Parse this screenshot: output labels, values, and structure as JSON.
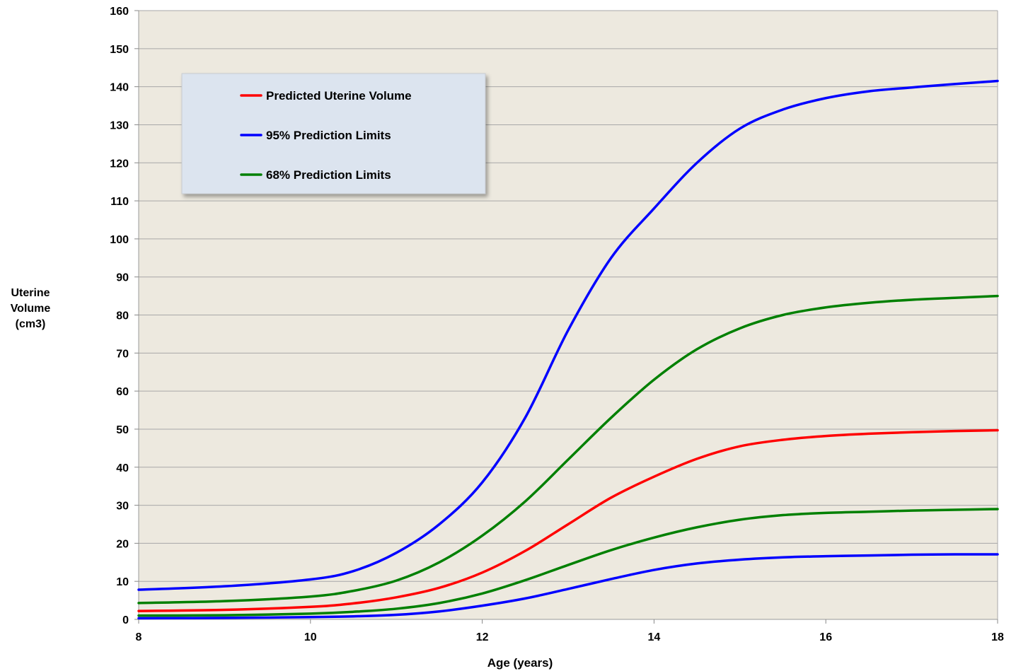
{
  "chart_data": {
    "type": "line",
    "xlabel": "Age (years)",
    "ylabel": "Uterine\nVolume\n(cm3)",
    "xlim": [
      8,
      18
    ],
    "ylim": [
      0,
      160
    ],
    "xticks": [
      8,
      10,
      12,
      14,
      16,
      18
    ],
    "yticks": [
      0,
      10,
      20,
      30,
      40,
      50,
      60,
      70,
      80,
      90,
      100,
      110,
      120,
      130,
      140,
      150,
      160
    ],
    "grid": true,
    "legend_position": "top-left",
    "plot_background": "#ede9df",
    "x": [
      8,
      9,
      10,
      10.5,
      11,
      11.5,
      12,
      12.5,
      13,
      13.5,
      14,
      14.5,
      15,
      15.5,
      16,
      16.5,
      17,
      17.5,
      18
    ],
    "series": [
      {
        "name": "Predicted Uterine Volume",
        "color": "#ff0000",
        "legend": true,
        "values": [
          2.2,
          2.5,
          3.3,
          4.2,
          5.8,
          8.3,
          12.3,
          18,
          25,
          32,
          37.5,
          42.2,
          45.5,
          47.2,
          48.2,
          48.8,
          49.2,
          49.5,
          49.7
        ]
      },
      {
        "name": "95% Prediction Limits",
        "color": "#0000ff",
        "legend": true,
        "values": [
          7.8,
          8.7,
          10.5,
          12.7,
          17.5,
          25,
          36,
          53,
          76,
          95,
          108,
          120,
          129,
          134,
          137,
          138.8,
          139.8,
          140.7,
          141.5
        ]
      },
      {
        "name": "68% Prediction Limits",
        "color": "#008000",
        "legend": true,
        "values": [
          4.3,
          4.8,
          6,
          7.5,
          10.2,
          15,
          22,
          31,
          42,
          53,
          63,
          71,
          76.5,
          80,
          82,
          83.2,
          84,
          84.5,
          85
        ]
      },
      {
        "name": "95% Prediction Limits (lower)",
        "color": "#0000ff",
        "legend": false,
        "values": [
          0.3,
          0.4,
          0.6,
          0.8,
          1.2,
          2.1,
          3.6,
          5.5,
          8,
          10.6,
          13,
          14.7,
          15.7,
          16.3,
          16.6,
          16.8,
          17,
          17.1,
          17.1
        ]
      },
      {
        "name": "68% Prediction Limits (lower)",
        "color": "#008000",
        "legend": false,
        "values": [
          1,
          1.1,
          1.5,
          2,
          2.8,
          4.3,
          6.8,
          10.3,
          14.3,
          18.2,
          21.5,
          24.2,
          26.2,
          27.4,
          28,
          28.3,
          28.6,
          28.8,
          29
        ]
      }
    ]
  }
}
